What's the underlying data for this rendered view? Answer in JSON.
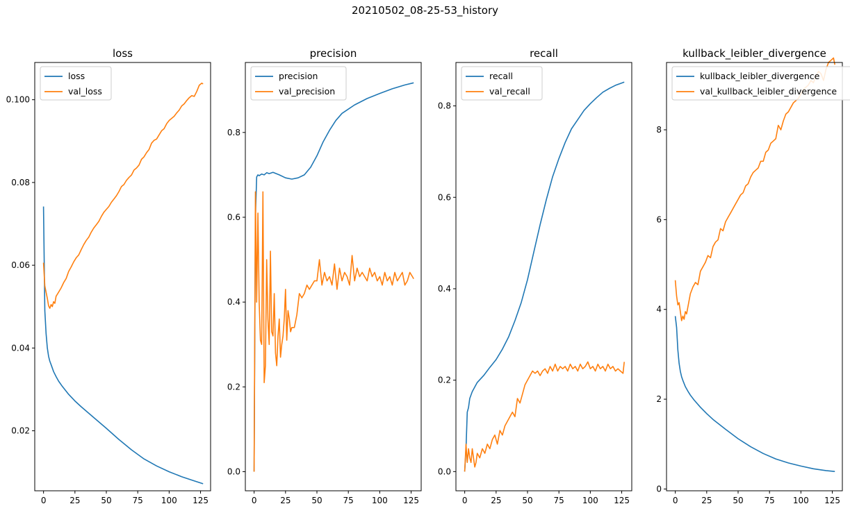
{
  "figure": {
    "suptitle": "20210502_08-25-53_history"
  },
  "colors": {
    "train": "#1f77b4",
    "validation": "#ff7f0e"
  },
  "chart_data": [
    {
      "type": "line",
      "title": "loss",
      "xlim": [
        -7,
        133
      ],
      "ylim": [
        0.0055,
        0.109
      ],
      "xticks": [
        0,
        25,
        50,
        75,
        100,
        125
      ],
      "yticks": [
        0.02,
        0.04,
        0.06,
        0.08,
        0.1
      ],
      "ytick_labels": [
        "0.02",
        "0.04",
        "0.06",
        "0.08",
        "0.100"
      ],
      "legend_position": "top-left",
      "series": [
        {
          "name": "loss",
          "role": "train",
          "x": [
            0,
            1,
            2,
            3,
            4,
            5,
            6,
            8,
            10,
            12,
            15,
            20,
            25,
            30,
            40,
            50,
            60,
            70,
            80,
            90,
            100,
            110,
            120,
            127
          ],
          "y": [
            0.0742,
            0.049,
            0.0435,
            0.04,
            0.038,
            0.0368,
            0.036,
            0.0343,
            0.0331,
            0.032,
            0.0307,
            0.0288,
            0.0272,
            0.0258,
            0.0232,
            0.0206,
            0.0179,
            0.0154,
            0.0132,
            0.0115,
            0.0101,
            0.0089,
            0.0079,
            0.0072
          ]
        },
        {
          "name": "val_loss",
          "role": "validation",
          "x": [
            0,
            1,
            2,
            3,
            4,
            5,
            6,
            7,
            8,
            9,
            10,
            12,
            14,
            16,
            18,
            20,
            22,
            24,
            26,
            28,
            30,
            32,
            34,
            36,
            38,
            40,
            42,
            44,
            46,
            48,
            50,
            52,
            54,
            56,
            58,
            60,
            62,
            64,
            66,
            68,
            70,
            72,
            74,
            76,
            78,
            80,
            82,
            84,
            86,
            88,
            90,
            92,
            94,
            96,
            98,
            100,
            102,
            104,
            106,
            108,
            110,
            112,
            114,
            116,
            118,
            120,
            122,
            124,
            126,
            127
          ],
          "y": [
            0.0606,
            0.055,
            0.0535,
            0.052,
            0.0502,
            0.0496,
            0.0505,
            0.05,
            0.0512,
            0.0508,
            0.0525,
            0.0535,
            0.0545,
            0.0558,
            0.0568,
            0.0585,
            0.0596,
            0.0608,
            0.0618,
            0.0625,
            0.0638,
            0.065,
            0.066,
            0.0668,
            0.068,
            0.069,
            0.0698,
            0.0706,
            0.0718,
            0.0728,
            0.0735,
            0.0742,
            0.0752,
            0.076,
            0.0768,
            0.0778,
            0.079,
            0.0795,
            0.0805,
            0.0812,
            0.0818,
            0.083,
            0.0835,
            0.0842,
            0.0856,
            0.0862,
            0.0872,
            0.088,
            0.0895,
            0.0902,
            0.0905,
            0.0915,
            0.0925,
            0.093,
            0.0942,
            0.095,
            0.0955,
            0.096,
            0.0968,
            0.0975,
            0.0985,
            0.099,
            0.0998,
            0.1005,
            0.101,
            0.1008,
            0.102,
            0.1035,
            0.104,
            0.1038
          ]
        }
      ]
    },
    {
      "type": "line",
      "title": "precision",
      "xlim": [
        -7,
        133
      ],
      "ylim": [
        -0.045,
        0.965
      ],
      "xticks": [
        0,
        25,
        50,
        75,
        100,
        125
      ],
      "yticks": [
        0.0,
        0.2,
        0.4,
        0.6,
        0.8
      ],
      "ytick_labels": [
        "0.0",
        "0.2",
        "0.4",
        "0.6",
        "0.8"
      ],
      "legend_position": "top-left",
      "series": [
        {
          "name": "precision",
          "role": "train",
          "x": [
            0,
            1,
            2,
            3,
            4,
            6,
            8,
            10,
            12,
            15,
            20,
            25,
            30,
            35,
            40,
            45,
            50,
            55,
            60,
            65,
            70,
            75,
            80,
            90,
            100,
            110,
            120,
            127
          ],
          "y": [
            0.0,
            0.6,
            0.695,
            0.7,
            0.698,
            0.702,
            0.7,
            0.705,
            0.703,
            0.706,
            0.7,
            0.693,
            0.69,
            0.693,
            0.7,
            0.718,
            0.745,
            0.778,
            0.805,
            0.828,
            0.845,
            0.855,
            0.865,
            0.88,
            0.892,
            0.903,
            0.912,
            0.917
          ]
        },
        {
          "name": "val_precision",
          "role": "validation",
          "x": [
            0,
            1,
            2,
            3,
            4,
            5,
            6,
            7,
            8,
            9,
            10,
            11,
            12,
            13,
            14,
            15,
            16,
            17,
            18,
            19,
            20,
            21,
            22,
            23,
            24,
            25,
            26,
            27,
            28,
            29,
            30,
            32,
            34,
            36,
            38,
            40,
            42,
            44,
            46,
            48,
            50,
            52,
            54,
            56,
            58,
            60,
            62,
            64,
            66,
            68,
            70,
            72,
            74,
            76,
            78,
            80,
            82,
            84,
            86,
            88,
            90,
            92,
            94,
            96,
            98,
            100,
            102,
            104,
            106,
            108,
            110,
            112,
            114,
            116,
            118,
            120,
            122,
            124,
            126,
            127
          ],
          "y": [
            0.0,
            0.66,
            0.4,
            0.61,
            0.4,
            0.31,
            0.3,
            0.66,
            0.21,
            0.25,
            0.5,
            0.36,
            0.3,
            0.52,
            0.33,
            0.32,
            0.42,
            0.28,
            0.25,
            0.32,
            0.36,
            0.27,
            0.3,
            0.32,
            0.36,
            0.43,
            0.31,
            0.38,
            0.36,
            0.33,
            0.34,
            0.34,
            0.37,
            0.42,
            0.41,
            0.42,
            0.44,
            0.43,
            0.44,
            0.45,
            0.45,
            0.5,
            0.44,
            0.47,
            0.45,
            0.46,
            0.44,
            0.49,
            0.43,
            0.48,
            0.45,
            0.47,
            0.46,
            0.44,
            0.51,
            0.45,
            0.48,
            0.46,
            0.47,
            0.46,
            0.45,
            0.48,
            0.46,
            0.47,
            0.45,
            0.46,
            0.44,
            0.47,
            0.45,
            0.46,
            0.44,
            0.47,
            0.45,
            0.46,
            0.47,
            0.44,
            0.45,
            0.47,
            0.46,
            0.455
          ]
        }
      ]
    },
    {
      "type": "line",
      "title": "recall",
      "xlim": [
        -7,
        133
      ],
      "ylim": [
        -0.042,
        0.895
      ],
      "xticks": [
        0,
        25,
        50,
        75,
        100,
        125
      ],
      "yticks": [
        0.0,
        0.2,
        0.4,
        0.6,
        0.8
      ],
      "ytick_labels": [
        "0.0",
        "0.2",
        "0.4",
        "0.6",
        "0.8"
      ],
      "legend_position": "top-left",
      "series": [
        {
          "name": "recall",
          "role": "train",
          "x": [
            0,
            1,
            2,
            3,
            4,
            6,
            8,
            10,
            15,
            20,
            25,
            30,
            35,
            40,
            45,
            50,
            55,
            60,
            65,
            70,
            75,
            80,
            85,
            90,
            95,
            100,
            105,
            110,
            115,
            120,
            125,
            127
          ],
          "y": [
            0.0,
            0.05,
            0.13,
            0.14,
            0.16,
            0.175,
            0.185,
            0.195,
            0.21,
            0.228,
            0.245,
            0.268,
            0.295,
            0.33,
            0.37,
            0.42,
            0.48,
            0.54,
            0.595,
            0.645,
            0.685,
            0.72,
            0.75,
            0.77,
            0.79,
            0.805,
            0.818,
            0.83,
            0.838,
            0.845,
            0.85,
            0.852
          ]
        },
        {
          "name": "val_recall",
          "role": "validation",
          "x": [
            0,
            1,
            2,
            3,
            4,
            5,
            6,
            7,
            8,
            9,
            10,
            12,
            14,
            16,
            18,
            20,
            22,
            24,
            26,
            28,
            30,
            32,
            34,
            36,
            38,
            40,
            42,
            44,
            46,
            48,
            50,
            52,
            54,
            56,
            58,
            60,
            62,
            64,
            66,
            68,
            70,
            72,
            74,
            76,
            78,
            80,
            82,
            84,
            86,
            88,
            90,
            92,
            94,
            96,
            98,
            100,
            102,
            104,
            106,
            108,
            110,
            112,
            114,
            116,
            118,
            120,
            122,
            124,
            126,
            127
          ],
          "y": [
            0.0,
            0.06,
            0.02,
            0.05,
            0.03,
            0.02,
            0.05,
            0.03,
            0.01,
            0.02,
            0.04,
            0.03,
            0.05,
            0.04,
            0.06,
            0.05,
            0.07,
            0.08,
            0.06,
            0.09,
            0.08,
            0.1,
            0.11,
            0.12,
            0.13,
            0.12,
            0.16,
            0.15,
            0.17,
            0.19,
            0.2,
            0.21,
            0.22,
            0.215,
            0.22,
            0.21,
            0.22,
            0.225,
            0.215,
            0.23,
            0.22,
            0.235,
            0.22,
            0.23,
            0.225,
            0.23,
            0.22,
            0.235,
            0.225,
            0.23,
            0.22,
            0.235,
            0.225,
            0.23,
            0.24,
            0.225,
            0.23,
            0.22,
            0.235,
            0.225,
            0.23,
            0.22,
            0.235,
            0.225,
            0.23,
            0.22,
            0.225,
            0.22,
            0.215,
            0.24
          ]
        }
      ]
    },
    {
      "type": "line",
      "title": "kullback_leibler_divergence",
      "xlim": [
        -7,
        133
      ],
      "ylim": [
        -0.04,
        9.5
      ],
      "xticks": [
        0,
        25,
        50,
        75,
        100,
        125
      ],
      "yticks": [
        0,
        2,
        4,
        6,
        8
      ],
      "ytick_labels": [
        "0",
        "2",
        "4",
        "6",
        "8"
      ],
      "legend_position": "top-left",
      "series": [
        {
          "name": "kullback_leibler_divergence",
          "role": "train",
          "x": [
            0,
            1,
            2,
            3,
            4,
            5,
            6,
            8,
            10,
            12,
            15,
            20,
            25,
            30,
            40,
            50,
            60,
            70,
            80,
            90,
            100,
            110,
            120,
            127
          ],
          "y": [
            3.85,
            3.6,
            3.1,
            2.8,
            2.62,
            2.5,
            2.42,
            2.28,
            2.18,
            2.09,
            1.98,
            1.82,
            1.68,
            1.55,
            1.33,
            1.12,
            0.94,
            0.79,
            0.67,
            0.58,
            0.51,
            0.45,
            0.41,
            0.39
          ]
        },
        {
          "name": "val_kullback_leibler_divergence",
          "role": "validation",
          "x": [
            0,
            1,
            2,
            3,
            4,
            5,
            6,
            7,
            8,
            9,
            10,
            12,
            14,
            16,
            18,
            20,
            22,
            24,
            26,
            28,
            30,
            32,
            34,
            36,
            38,
            40,
            42,
            44,
            46,
            48,
            50,
            52,
            54,
            56,
            58,
            60,
            62,
            64,
            66,
            68,
            70,
            72,
            74,
            76,
            78,
            80,
            82,
            84,
            86,
            88,
            90,
            92,
            94,
            96,
            98,
            100,
            102,
            104,
            106,
            108,
            110,
            112,
            114,
            116,
            118,
            120,
            122,
            124,
            126,
            127
          ],
          "y": [
            4.65,
            4.3,
            4.1,
            4.15,
            3.95,
            3.75,
            3.85,
            3.78,
            3.95,
            3.9,
            4.05,
            4.35,
            4.5,
            4.6,
            4.55,
            4.85,
            4.95,
            5.05,
            5.2,
            5.15,
            5.4,
            5.5,
            5.55,
            5.8,
            5.75,
            5.95,
            6.05,
            6.15,
            6.25,
            6.35,
            6.45,
            6.55,
            6.6,
            6.75,
            6.8,
            6.95,
            7.05,
            7.1,
            7.15,
            7.3,
            7.3,
            7.5,
            7.55,
            7.7,
            7.75,
            7.8,
            8.1,
            8.0,
            8.2,
            8.35,
            8.4,
            8.5,
            8.6,
            8.65,
            8.7,
            8.8,
            8.9,
            8.95,
            9.0,
            9.1,
            9.05,
            9.2,
            9.3,
            9.25,
            9.1,
            9.35,
            9.5,
            9.55,
            9.6,
            9.45
          ]
        }
      ]
    }
  ]
}
